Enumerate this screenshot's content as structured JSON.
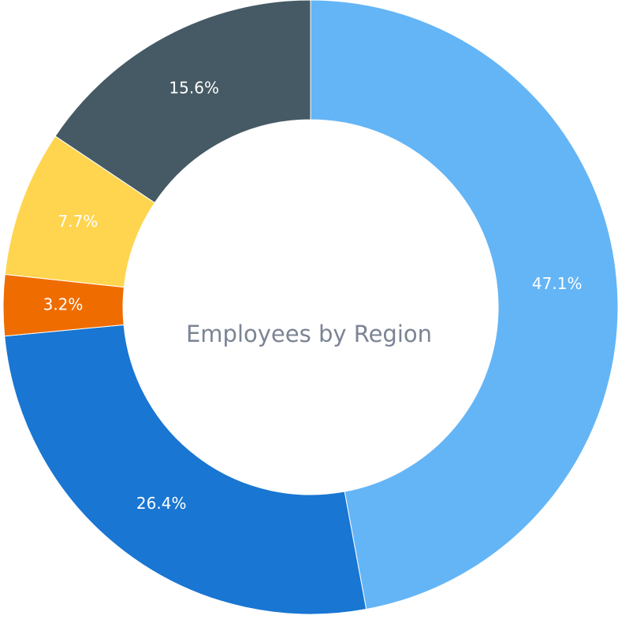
{
  "chart_data": {
    "type": "pie",
    "hole": true,
    "center_label": "Employees by Region",
    "slices": [
      {
        "value": 47.1,
        "label": "47.1%",
        "color": "#64b5f6"
      },
      {
        "value": 26.4,
        "label": "26.4%",
        "color": "#1976d2"
      },
      {
        "value": 3.2,
        "label": "3.2%",
        "color": "#ef6c00"
      },
      {
        "value": 7.7,
        "label": "7.7%",
        "color": "#ffd54f"
      },
      {
        "value": 15.6,
        "label": "15.6%",
        "color": "#455a64"
      }
    ],
    "direction": "clockwise",
    "start": "top",
    "legend": "none"
  }
}
